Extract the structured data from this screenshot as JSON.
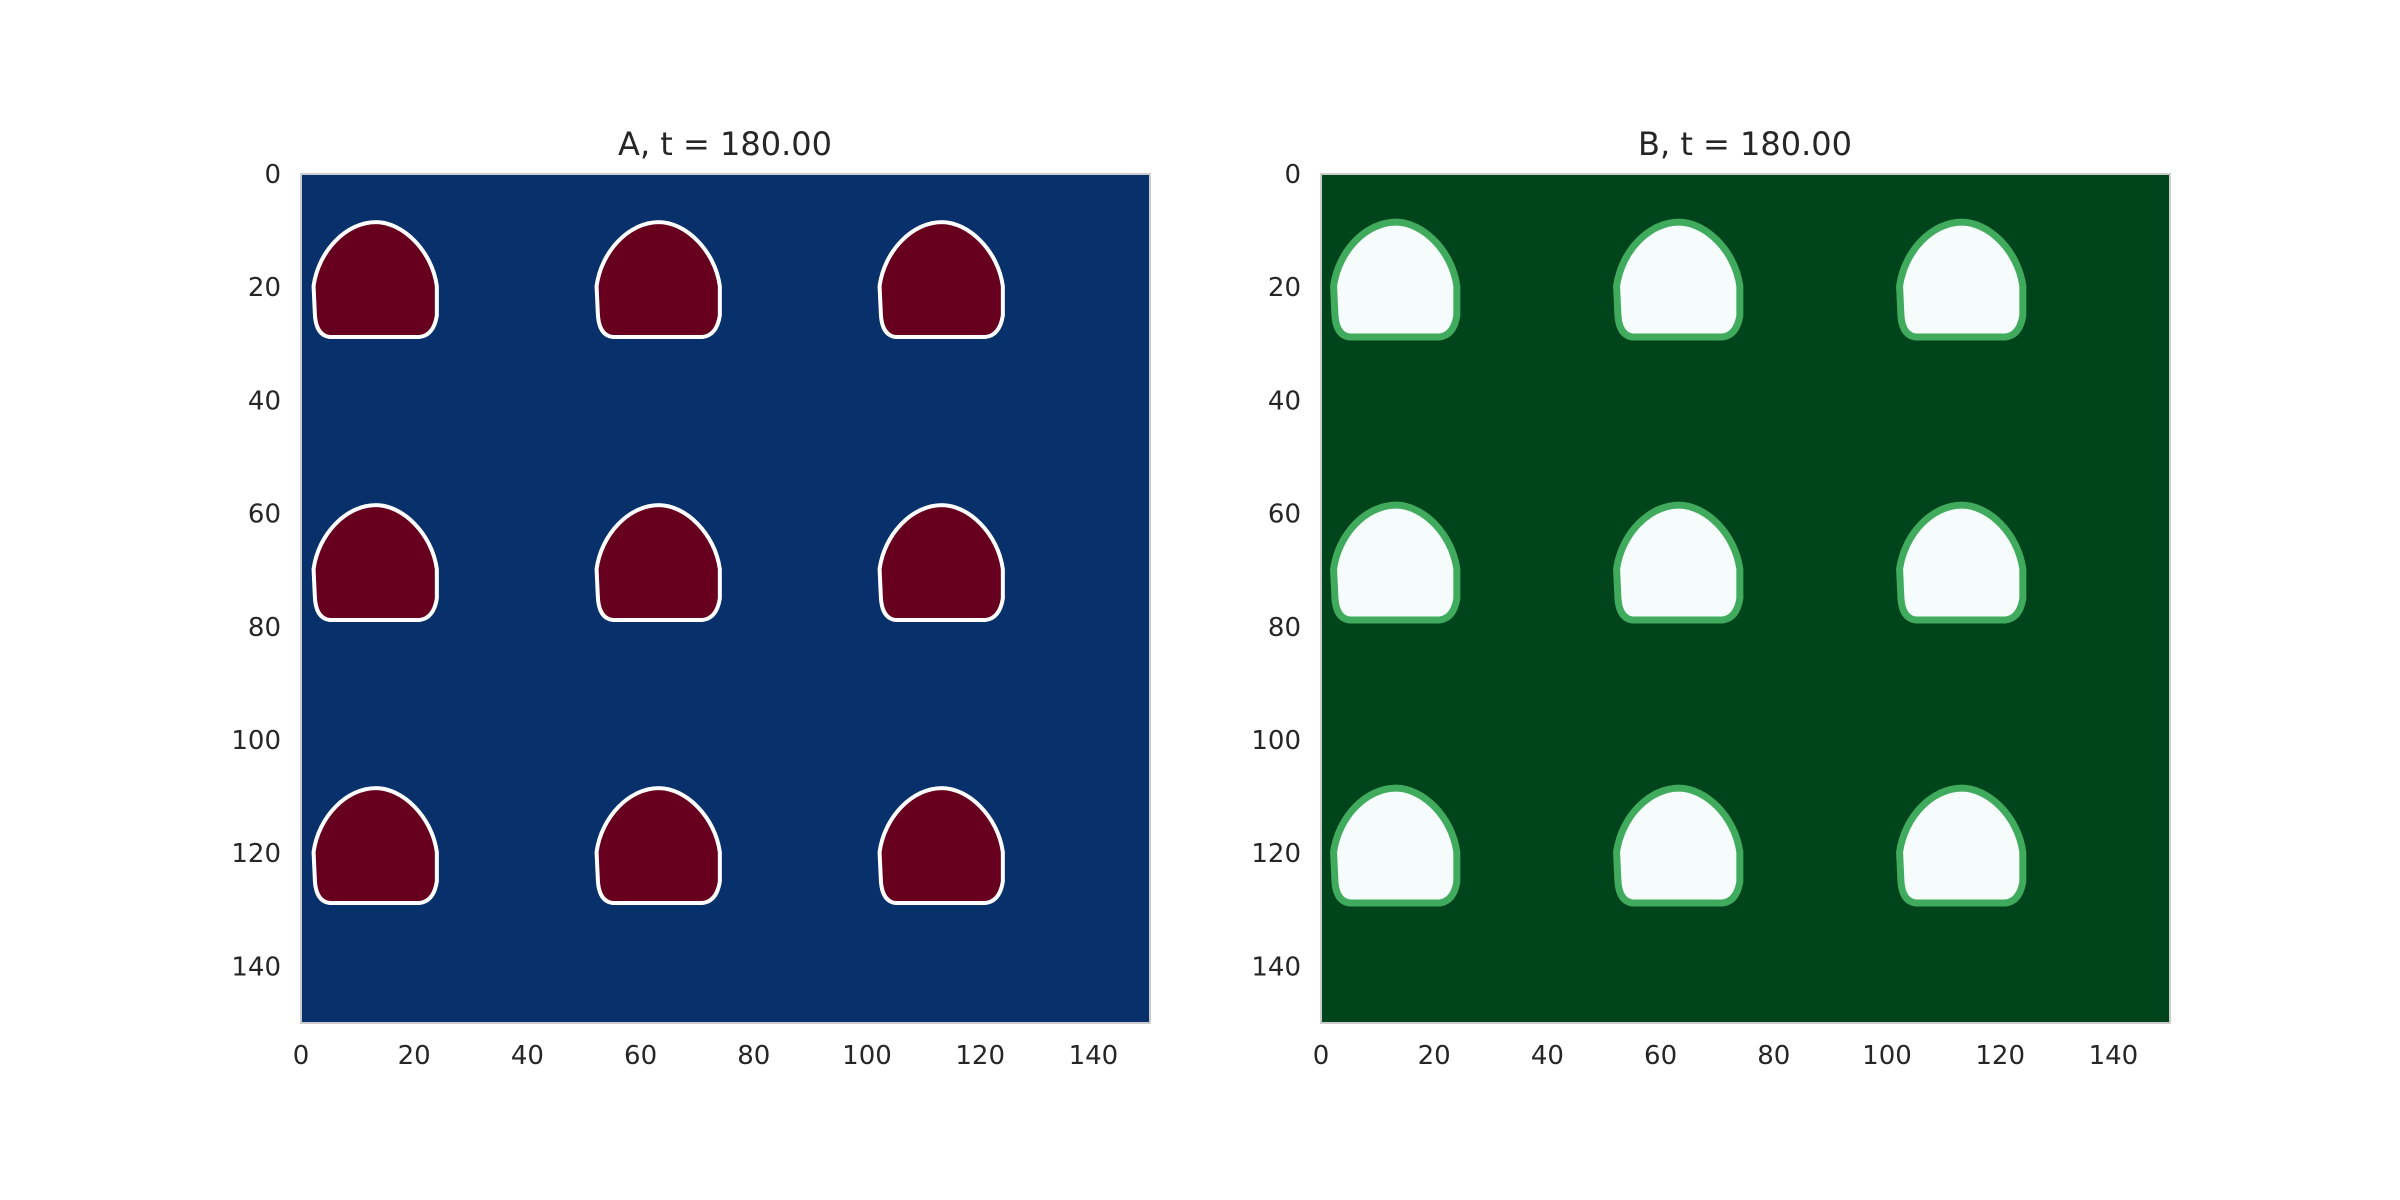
{
  "chart_data": [
    {
      "type": "heatmap",
      "title": "A, t = 180.00",
      "colormap": "RdBu_r",
      "colors": {
        "background": "#08306b",
        "blob": "#67001f",
        "edge": "#ffffff"
      },
      "xlim": [
        0,
        150
      ],
      "ylim": [
        150,
        0
      ],
      "xticks": [
        "0",
        "20",
        "40",
        "60",
        "80",
        "100",
        "120",
        "140"
      ],
      "yticks": [
        "0",
        "20",
        "40",
        "60",
        "80",
        "100",
        "120",
        "140"
      ],
      "grid": false,
      "blob_centers": [
        [
          13,
          19
        ],
        [
          63,
          19
        ],
        [
          113,
          19
        ],
        [
          13,
          69
        ],
        [
          63,
          69
        ],
        [
          113,
          69
        ],
        [
          13,
          119
        ],
        [
          63,
          119
        ],
        [
          113,
          119
        ]
      ],
      "blob_width": 22,
      "blob_height": 20
    },
    {
      "type": "heatmap",
      "title": "B, t = 180.00",
      "colormap": "BuGn",
      "colors": {
        "background": "#00441b",
        "blob": "#f5fcfb",
        "edge": "#41ab5d"
      },
      "xlim": [
        0,
        150
      ],
      "ylim": [
        150,
        0
      ],
      "xticks": [
        "0",
        "20",
        "40",
        "60",
        "80",
        "100",
        "120",
        "140"
      ],
      "yticks": [
        "0",
        "20",
        "40",
        "60",
        "80",
        "100",
        "120",
        "140"
      ],
      "grid": false,
      "blob_centers": [
        [
          13,
          19
        ],
        [
          63,
          19
        ],
        [
          113,
          19
        ],
        [
          13,
          69
        ],
        [
          63,
          69
        ],
        [
          113,
          69
        ],
        [
          13,
          119
        ],
        [
          63,
          119
        ],
        [
          113,
          119
        ]
      ],
      "blob_width": 22,
      "blob_height": 20
    }
  ]
}
